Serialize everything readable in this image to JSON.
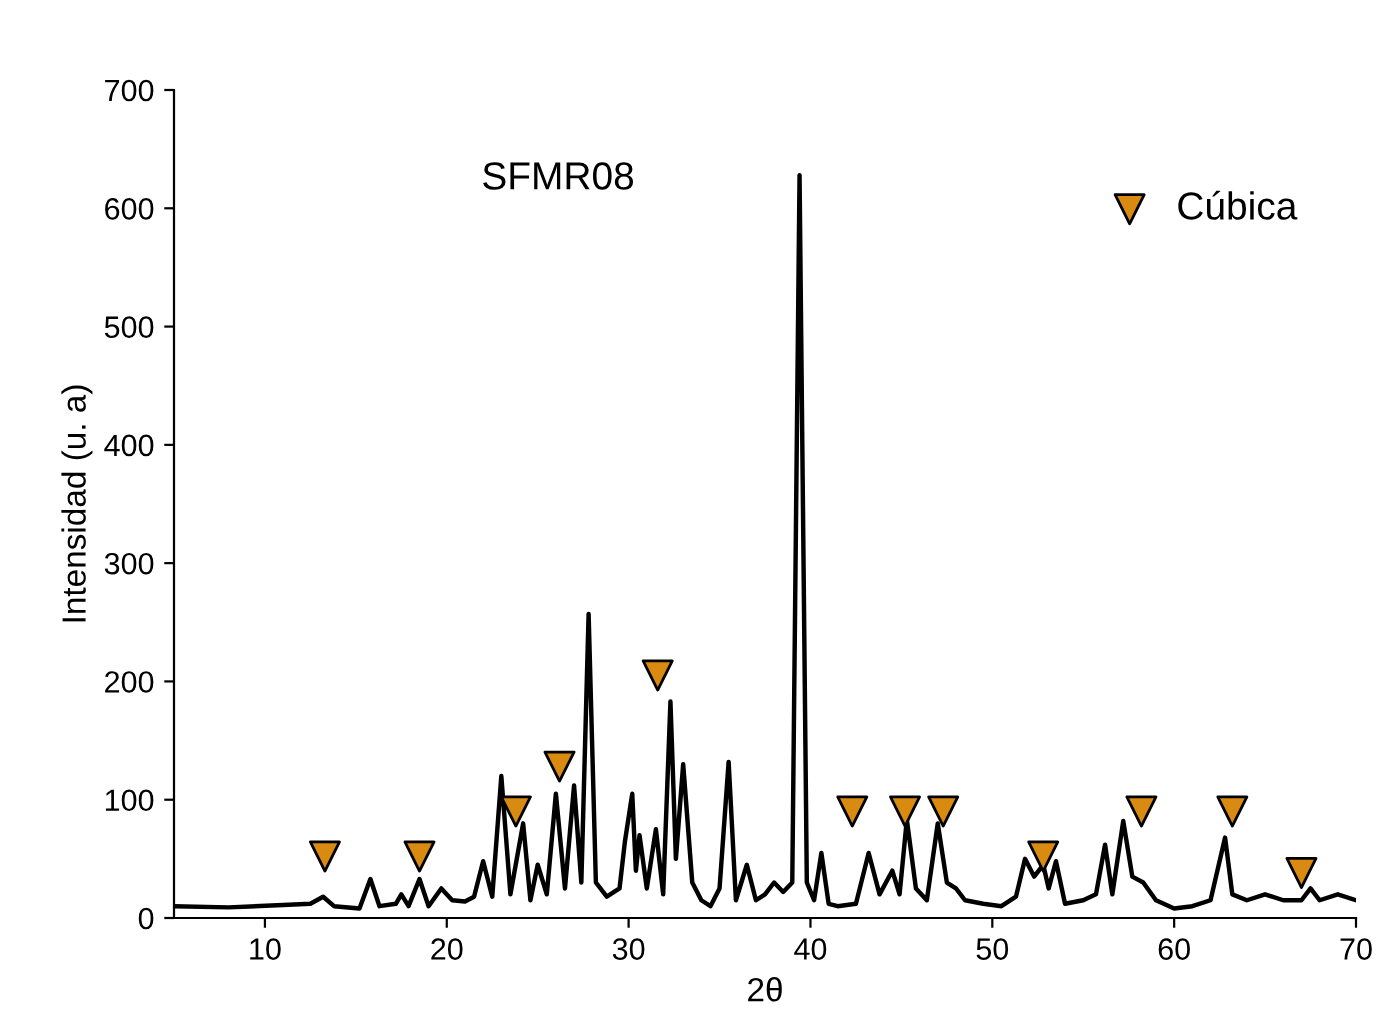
{
  "chart_data": {
    "type": "line",
    "xlabel": "2θ",
    "ylabel": "Intensidad (u. a)",
    "xlim": [
      5,
      70
    ],
    "xticks": [
      10,
      20,
      30,
      40,
      50,
      60,
      70
    ],
    "ylim": [
      0,
      700
    ],
    "yticks": [
      0,
      100,
      200,
      300,
      400,
      500,
      600,
      700
    ],
    "annotations": [
      "SFMR08"
    ],
    "legend": "top right",
    "grid": false,
    "series": [
      {
        "color": "#000000",
        "marker": "none",
        "x": [
          5,
          8,
          11,
          12.5,
          13.2,
          13.8,
          15.2,
          15.8,
          16.3,
          17.2,
          17.5,
          17.9,
          18.5,
          19,
          19.7,
          20.3,
          21,
          21.5,
          22,
          22.5,
          23,
          23.5,
          24.2,
          24.6,
          25,
          25.5,
          26,
          26.5,
          27,
          27.4,
          27.8,
          28.2,
          28.8,
          29.5,
          29.8,
          30.2,
          30.4,
          30.6,
          31,
          31.5,
          31.9,
          32.3,
          32.6,
          33,
          33.5,
          34,
          34.5,
          35,
          35.5,
          35.9,
          36.5,
          37,
          37.5,
          38,
          38.5,
          39,
          39.4,
          39.8,
          40.2,
          40.6,
          41,
          41.5,
          42.5,
          43.2,
          43.8,
          44.5,
          44.9,
          45.3,
          45.8,
          46.4,
          47,
          47.5,
          48,
          48.5,
          49.5,
          50.5,
          51.3,
          51.8,
          52.3,
          52.8,
          53.1,
          53.5,
          54,
          55,
          55.7,
          56.2,
          56.6,
          57.2,
          57.7,
          58.3,
          59,
          60,
          61,
          62,
          62.8,
          63.2,
          64,
          65,
          66,
          67,
          67.5,
          68,
          69,
          70
        ],
        "values": [
          10,
          9,
          11,
          12,
          18,
          10,
          8,
          33,
          10,
          12,
          20,
          10,
          33,
          10,
          25,
          15,
          14,
          18,
          48,
          18,
          120,
          20,
          80,
          15,
          45,
          20,
          105,
          25,
          112,
          30,
          257,
          30,
          18,
          25,
          65,
          105,
          40,
          70,
          25,
          75,
          20,
          183,
          50,
          130,
          30,
          15,
          10,
          25,
          132,
          15,
          45,
          15,
          20,
          30,
          22,
          30,
          628,
          30,
          15,
          55,
          12,
          10,
          12,
          55,
          20,
          40,
          20,
          83,
          25,
          15,
          80,
          30,
          25,
          15,
          12,
          10,
          18,
          50,
          35,
          45,
          25,
          48,
          12,
          15,
          20,
          62,
          20,
          82,
          35,
          30,
          15,
          8,
          10,
          15,
          68,
          20,
          15,
          20,
          15,
          15,
          25,
          15,
          20,
          15
        ]
      },
      {
        "type": "scatter",
        "name": "Cúbica",
        "color": "#d98a10",
        "marker": "triangle_down",
        "x": [
          13.3,
          18.5,
          23.8,
          26.2,
          31.6,
          42.3,
          45.2,
          47.3,
          52.8,
          58.2,
          63.2,
          67
        ],
        "values": [
          52,
          52,
          90,
          128,
          205,
          90,
          90,
          90,
          52,
          90,
          90,
          38
        ]
      }
    ]
  }
}
